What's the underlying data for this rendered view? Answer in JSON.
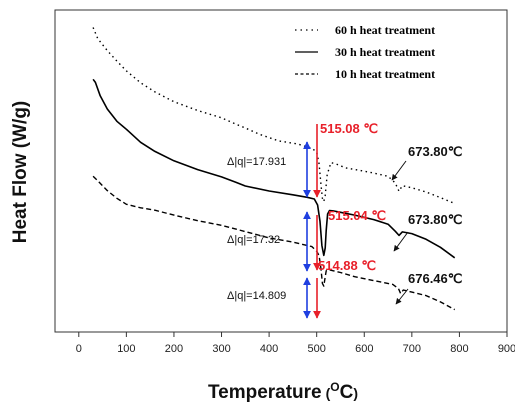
{
  "chart_data": {
    "type": "line",
    "xlabel": "Temperature",
    "xlabel_unit_sup": "O",
    "xlabel_unit": "C",
    "ylabel": "Heat Flow (W/g)",
    "xlim": [
      -50,
      900
    ],
    "xticks": [
      0,
      100,
      200,
      300,
      400,
      500,
      600,
      700,
      800,
      900
    ],
    "legend_position": "top-right",
    "series": [
      {
        "name": "60 h heat treatment",
        "style": "dotted",
        "x": [
          30,
          40,
          60,
          80,
          100,
          130,
          160,
          200,
          250,
          300,
          330,
          350,
          380,
          420,
          460,
          490,
          500,
          505,
          509,
          512,
          515,
          518,
          522,
          530,
          545,
          560,
          590,
          620,
          650,
          665,
          673,
          680,
          700,
          730,
          760,
          790
        ],
        "y": [
          61.0,
          57.8,
          54.4,
          51.4,
          48.6,
          45.2,
          42.6,
          39.8,
          37.3,
          35.2,
          33.4,
          32.3,
          30.5,
          28.6,
          27.7,
          26.5,
          25.4,
          22.0,
          16.0,
          12.2,
          11.3,
          13.0,
          19.0,
          22.4,
          21.8,
          20.9,
          20.2,
          19.4,
          18.5,
          16.6,
          14.2,
          15.8,
          15.2,
          14.0,
          12.4,
          10.7
        ]
      },
      {
        "name": "30 h heat treatment",
        "style": "solid",
        "x": [
          30,
          35,
          45,
          60,
          80,
          100,
          130,
          160,
          200,
          250,
          300,
          330,
          350,
          400,
          450,
          480,
          495,
          502,
          507,
          511,
          515,
          518,
          520,
          523,
          527,
          535,
          550,
          580,
          620,
          650,
          665,
          673,
          680,
          700,
          730,
          760,
          790
        ],
        "y": [
          46.2,
          45.3,
          41.5,
          37.7,
          34.2,
          31.9,
          28.2,
          25.6,
          22.9,
          20.4,
          18.3,
          16.8,
          15.7,
          14.3,
          13.2,
          12.5,
          12.0,
          10.3,
          5.6,
          -1.3,
          -4.1,
          -2.0,
          3.0,
          7.7,
          8.7,
          8.6,
          8.2,
          7.4,
          6.1,
          4.8,
          2.8,
          1.6,
          2.6,
          2.1,
          0.5,
          -1.8,
          -4.8
        ]
      },
      {
        "name": "10 h heat treatment",
        "style": "dashed",
        "x": [
          30,
          40,
          60,
          80,
          100,
          130,
          160,
          200,
          250,
          300,
          350,
          400,
          450,
          490,
          500,
          505,
          509,
          512,
          514.88,
          517,
          520,
          525,
          535,
          550,
          580,
          620,
          660,
          672,
          676.46,
          682,
          700,
          730,
          760,
          790
        ],
        "y": [
          18.5,
          17.2,
          14.4,
          12.2,
          10.5,
          9.5,
          8.8,
          7.4,
          5.8,
          4.5,
          2.7,
          0.9,
          -0.3,
          -1.6,
          -2.9,
          -4.2,
          -8.0,
          -12.1,
          -12.9,
          -11.0,
          -8.5,
          -8.2,
          -8.5,
          -9.0,
          -10.2,
          -11.3,
          -12.4,
          -13.6,
          -15.0,
          -14.0,
          -14.6,
          -15.6,
          -17.4,
          -19.6
        ]
      }
    ],
    "annotations": {
      "peaks_red": [
        "515.08 ℃",
        "515.04 ℃",
        "514.88 ℃"
      ],
      "peaks_black": [
        "673.80℃",
        "673.80℃",
        "676.46℃"
      ],
      "dq": [
        "Δ|q|=17.931",
        "Δ|q|=17.32",
        "Δ|q|=14.809"
      ]
    },
    "colors": {
      "red_arrow": "#e8202a",
      "blue_arrow": "#1f3fe0",
      "lines": "#000000"
    }
  }
}
